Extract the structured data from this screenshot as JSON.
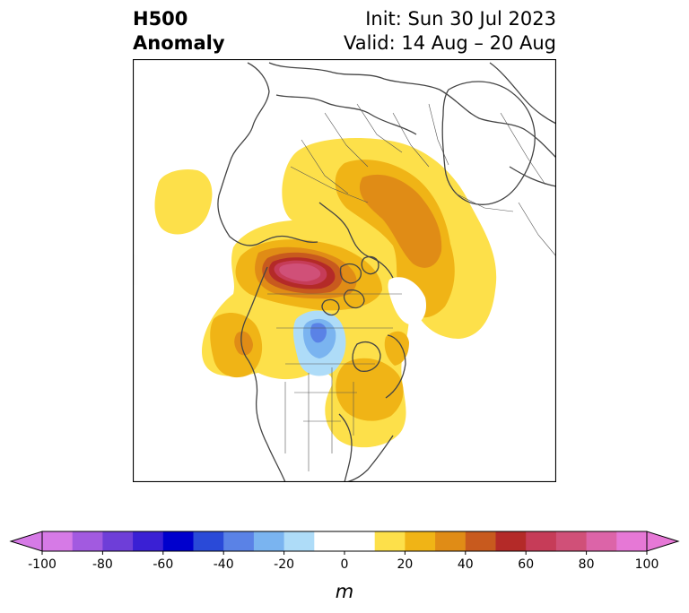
{
  "title": {
    "left_line1": "H500",
    "left_line2": "Anomaly",
    "right_line1": "Init: Sun 30 Jul 2023",
    "right_line2": "Valid: 14 Aug – 20 Aug"
  },
  "colorbar": {
    "unit": "m",
    "ticks": [
      "-100",
      "-80",
      "-60",
      "-40",
      "-20",
      "0",
      "20",
      "40",
      "60",
      "80",
      "100"
    ],
    "min": -100,
    "max": 100,
    "extend": "both",
    "colors": [
      "#d67ae6",
      "#a25ae0",
      "#6e3ed8",
      "#3a20d4",
      "#0000cd",
      "#2a4ad8",
      "#5a82e6",
      "#7ab4f0",
      "#aedcf8",
      "#ffffff",
      "#ffffff",
      "#fde04a",
      "#f0b416",
      "#e08c16",
      "#c85a1e",
      "#b42a28",
      "#c63c58",
      "#d05078",
      "#dc64a8",
      "#e678d6"
    ]
  },
  "map": {
    "region": "North America / Arctic polar stereographic",
    "field": "500 hPa geopotential height anomaly"
  }
}
